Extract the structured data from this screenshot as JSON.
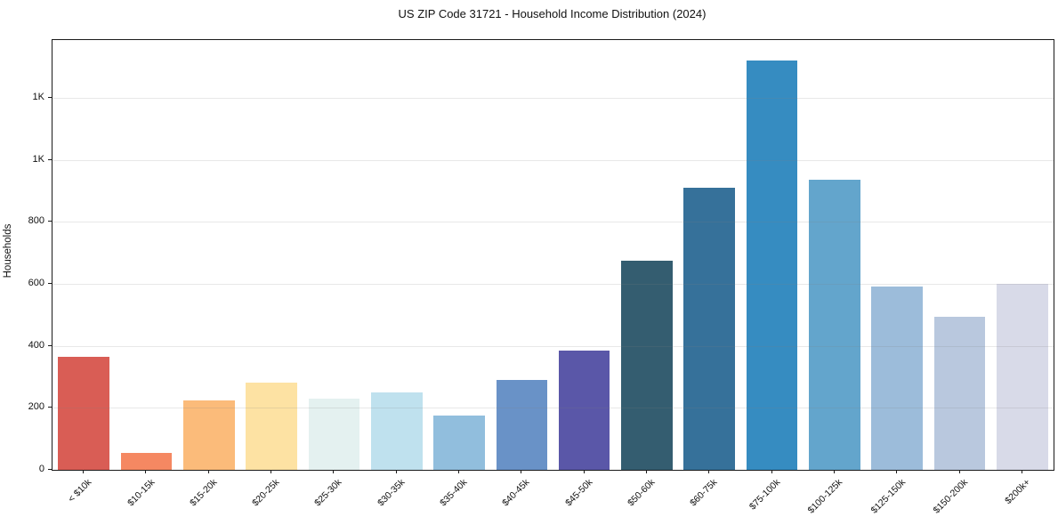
{
  "title": "US ZIP Code 31721 - Household Income Distribution (2024)",
  "chart_data": {
    "type": "bar",
    "title": "US ZIP Code 31721 - Household Income Distribution (2024)",
    "xlabel": "",
    "ylabel": "Households",
    "categories": [
      "< $10k",
      "$10-15k",
      "$15-20k",
      "$20-25k",
      "$25-30k",
      "$30-35k",
      "$35-40k",
      "$40-45k",
      "$45-50k",
      "$50-60k",
      "$60-75k",
      "$75-100k",
      "$100-125k",
      "$125-150k",
      "$150-200k",
      "$200k+"
    ],
    "values": [
      365,
      55,
      225,
      280,
      230,
      250,
      175,
      290,
      385,
      675,
      910,
      1320,
      935,
      590,
      495,
      600
    ],
    "bar_colors": [
      "#d95d55",
      "#f58862",
      "#fbbb7a",
      "#fde2a3",
      "#e4f1f0",
      "#bfe1ee",
      "#91bedd",
      "#6992c7",
      "#5a57a8",
      "#345d70",
      "#36719a",
      "#368cc1",
      "#63a5cc",
      "#9cbcda",
      "#b9c8de",
      "#d8dae8"
    ],
    "ylim": [
      0,
      1386
    ],
    "yticks": [
      {
        "value": 0,
        "label": "0"
      },
      {
        "value": 200,
        "label": "200"
      },
      {
        "value": 400,
        "label": "400"
      },
      {
        "value": 600,
        "label": "600"
      },
      {
        "value": 800,
        "label": "800"
      },
      {
        "value": 1000,
        "label": "1K"
      },
      {
        "value": 1200,
        "label": "1K"
      }
    ],
    "grid": true,
    "grid_axis": "y",
    "legend": false,
    "bar_width_fraction": 0.82
  }
}
